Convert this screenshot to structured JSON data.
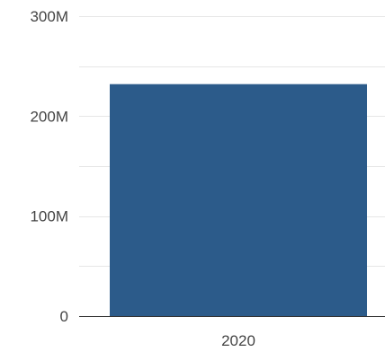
{
  "chart_data": {
    "type": "bar",
    "title": "",
    "xlabel": "",
    "ylabel": "",
    "categories": [
      "2020"
    ],
    "values": [
      232000000
    ],
    "ylim": [
      0,
      300000000
    ],
    "y_ticks": [
      {
        "value": 0,
        "label": "0"
      },
      {
        "value": 100000000,
        "label": "100M"
      },
      {
        "value": 200000000,
        "label": "200M"
      },
      {
        "value": 300000000,
        "label": "300M"
      }
    ],
    "minor_gridlines": [
      50000000,
      150000000,
      250000000
    ],
    "grid": true,
    "bar_color": "#2c5b8a",
    "gridline_color": "#e6e6e6",
    "axis_color": "#333333",
    "text_color": "#444444"
  }
}
